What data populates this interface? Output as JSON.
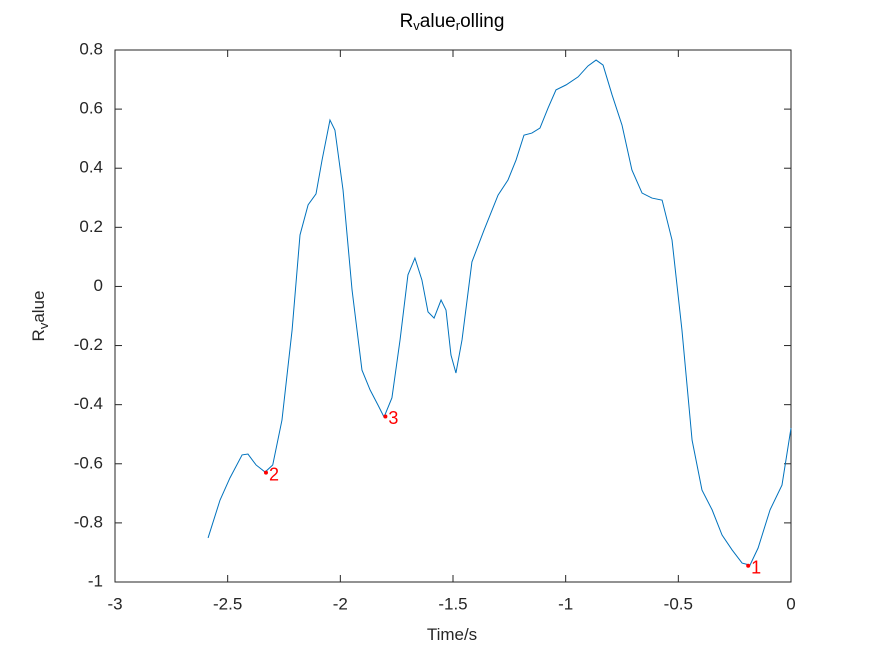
{
  "chart_data": {
    "type": "line",
    "title": [
      {
        "text": "R"
      },
      {
        "text": "v",
        "sub": true
      },
      {
        "text": "alue"
      },
      {
        "text": "r",
        "sub": true
      },
      {
        "text": "olling"
      }
    ],
    "xlabel": [
      {
        "text": "Time/s"
      }
    ],
    "ylabel": [
      {
        "text": "R"
      },
      {
        "text": "v",
        "sub": true
      },
      {
        "text": "alue"
      }
    ],
    "xlim": [
      -3,
      0
    ],
    "ylim": [
      -1,
      0.8
    ],
    "xticks": [
      -3,
      -2.5,
      -2,
      -1.5,
      -1,
      -0.5,
      0
    ],
    "yticks": [
      -1,
      -0.8,
      -0.6,
      -0.4,
      -0.2,
      0,
      0.2,
      0.4,
      0.6,
      0.8
    ],
    "grid": false,
    "series": [
      {
        "color": "#0072bd",
        "x": [
          -2.587,
          -2.534,
          -2.49,
          -2.436,
          -2.41,
          -2.374,
          -2.334,
          -2.3,
          -2.259,
          -2.214,
          -2.179,
          -2.143,
          -2.108,
          -2.081,
          -2.046,
          -2.024,
          -1.988,
          -1.948,
          -1.904,
          -1.868,
          -1.833,
          -1.806,
          -1.771,
          -1.735,
          -1.7,
          -1.669,
          -1.638,
          -1.611,
          -1.584,
          -1.553,
          -1.531,
          -1.509,
          -1.487,
          -1.46,
          -1.416,
          -1.362,
          -1.3,
          -1.256,
          -1.22,
          -1.185,
          -1.15,
          -1.114,
          -1.078,
          -1.043,
          -0.998,
          -0.945,
          -0.901,
          -0.865,
          -0.834,
          -0.794,
          -0.75,
          -0.706,
          -0.661,
          -0.617,
          -0.572,
          -0.528,
          -0.484,
          -0.439,
          -0.395,
          -0.35,
          -0.306,
          -0.261,
          -0.217,
          -0.182,
          -0.146,
          -0.093,
          -0.04,
          0
        ],
        "values": [
          -0.851,
          -0.723,
          -0.648,
          -0.57,
          -0.567,
          -0.604,
          -0.628,
          -0.604,
          -0.452,
          -0.147,
          0.174,
          0.276,
          0.313,
          0.428,
          0.563,
          0.529,
          0.326,
          -0.012,
          -0.283,
          -0.35,
          -0.401,
          -0.442,
          -0.377,
          -0.181,
          0.039,
          0.096,
          0.022,
          -0.086,
          -0.107,
          -0.046,
          -0.08,
          -0.232,
          -0.293,
          -0.181,
          0.083,
          0.191,
          0.309,
          0.36,
          0.428,
          0.512,
          0.519,
          0.536,
          0.604,
          0.665,
          0.682,
          0.709,
          0.746,
          0.766,
          0.749,
          0.648,
          0.546,
          0.394,
          0.316,
          0.299,
          0.292,
          0.157,
          -0.147,
          -0.52,
          -0.689,
          -0.756,
          -0.841,
          -0.892,
          -0.936,
          -0.943,
          -0.885,
          -0.756,
          -0.672,
          -0.479
        ]
      }
    ],
    "annotations": [
      {
        "label": "1",
        "x": -0.19,
        "y": -0.945,
        "color": "#ff0000"
      },
      {
        "label": "2",
        "x": -2.33,
        "y": -0.63,
        "color": "#ff0000"
      },
      {
        "label": "3",
        "x": -1.8,
        "y": -0.44,
        "color": "#ff0000"
      }
    ]
  }
}
